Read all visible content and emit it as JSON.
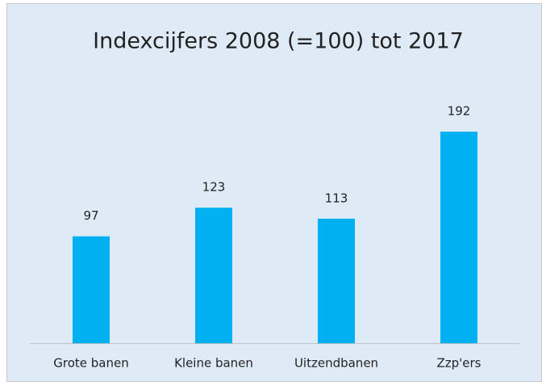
{
  "chart_data": {
    "type": "bar",
    "title": "Indexcijfers 2008 (=100) tot 2017",
    "categories": [
      "Grote banen",
      "Kleine banen",
      "Uitzendbanen",
      "Zzp'ers"
    ],
    "values": [
      97,
      123,
      113,
      192
    ],
    "color": "#00b0f0"
  }
}
